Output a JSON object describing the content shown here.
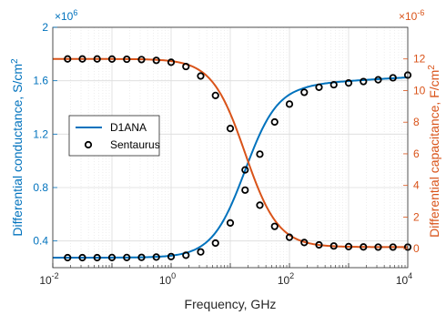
{
  "chart_data": {
    "type": "line",
    "xlabel": "Frequency, GHz",
    "xscale": "log",
    "xlim": [
      0.01,
      10000
    ],
    "x_tick_labels": [
      {
        "base": "10",
        "exp": "-2",
        "value": 0.01
      },
      {
        "base": "10",
        "exp": "0",
        "value": 1
      },
      {
        "base": "10",
        "exp": "2",
        "value": 100
      },
      {
        "base": "10",
        "exp": "4",
        "value": 10000
      }
    ],
    "grid": true,
    "y_left": {
      "label": "Differential conductance, S/cm",
      "label_sup": "2",
      "multiplier_base": "×10",
      "multiplier_exp": "6",
      "lim": [
        0.2,
        2.0
      ],
      "tick_values": [
        0.4,
        0.8,
        1.2,
        1.6,
        2.0
      ],
      "tick_labels": [
        "0.4",
        "0.8",
        "1.2",
        "1.6",
        "2"
      ],
      "color": "#0072BD"
    },
    "y_right": {
      "label": "Differential capacitance, F/cm",
      "label_sup": "2",
      "multiplier_base": "×10",
      "multiplier_exp": "-6",
      "lim": [
        -1.2,
        14
      ],
      "tick_values": [
        0,
        2,
        4,
        6,
        8,
        10,
        12
      ],
      "tick_labels": [
        "0",
        "2",
        "4",
        "6",
        "8",
        "10",
        "12"
      ],
      "color": "#D95319"
    },
    "legend": {
      "position": "center-left",
      "entries": [
        {
          "label": "D1ANA",
          "style": "line",
          "color": "#0072BD"
        },
        {
          "label": "Sentaurus",
          "style": "marker",
          "color": "#000000"
        }
      ]
    },
    "series": [
      {
        "name": "D1ANA",
        "axis": "left",
        "kind": "conductance-model",
        "color": "#0072BD",
        "params": {
          "low": 0.275,
          "high": 1.58,
          "center_log10f": 1.25,
          "width": 0.28,
          "tail_slope": 0.025
        }
      },
      {
        "name": "D1ANA",
        "axis": "right",
        "kind": "capacitance-model",
        "color": "#D95319",
        "params": {
          "low": 0.1,
          "high": 12.0,
          "center_log10f": 1.25,
          "width": 0.28
        }
      },
      {
        "name": "Sentaurus",
        "axis": "left",
        "style": "marker",
        "color": "#000000",
        "x": [
          0.0178,
          0.0316,
          0.0562,
          0.1,
          0.178,
          0.316,
          0.562,
          1,
          1.78,
          3.16,
          5.62,
          10,
          17.8,
          31.6,
          56.2,
          100,
          178,
          316,
          562,
          1000,
          1780,
          3160,
          5620,
          10000
        ],
        "values": [
          0.275,
          0.275,
          0.275,
          0.276,
          0.276,
          0.277,
          0.279,
          0.283,
          0.293,
          0.318,
          0.384,
          0.535,
          0.781,
          1.05,
          1.291,
          1.425,
          1.513,
          1.551,
          1.57,
          1.583,
          1.594,
          1.607,
          1.622,
          1.642
        ]
      },
      {
        "name": "Sentaurus",
        "axis": "right",
        "style": "marker",
        "color": "#000000",
        "x": [
          0.0178,
          0.0316,
          0.0562,
          0.1,
          0.178,
          0.316,
          0.562,
          1,
          1.78,
          3.16,
          5.62,
          10,
          17.8,
          31.6,
          56.2,
          100,
          178,
          316,
          562,
          1000,
          1780,
          3160,
          5620,
          10000
        ],
        "values": [
          12.0,
          12.0,
          12.0,
          11.99,
          11.98,
          11.96,
          11.91,
          11.79,
          11.52,
          10.92,
          9.69,
          7.6,
          4.98,
          2.75,
          1.41,
          0.72,
          0.39,
          0.24,
          0.17,
          0.13,
          0.11,
          0.1,
          0.1,
          0.1
        ]
      }
    ]
  }
}
